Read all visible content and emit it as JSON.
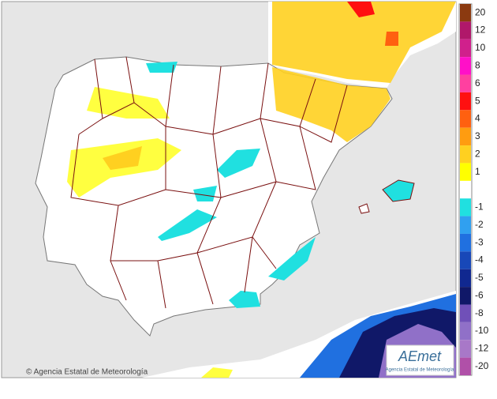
{
  "copyright": "© Agencia Estatal de Meteorología",
  "logo": {
    "name": "AEmet",
    "subtitle": "Agencia Estatal de Meteorología"
  },
  "legend": {
    "positive": [
      {
        "label": 20,
        "color": "#8b3a10"
      },
      {
        "label": 12,
        "color": "#b0186a"
      },
      {
        "label": 10,
        "color": "#d0208c"
      },
      {
        "label": 8,
        "color": "#ff10c8"
      },
      {
        "label": 6,
        "color": "#ff40a0"
      },
      {
        "label": 5,
        "color": "#ff1010"
      },
      {
        "label": 4,
        "color": "#ff6010"
      },
      {
        "label": 3,
        "color": "#ff9c10"
      },
      {
        "label": 2,
        "color": "#ffd020"
      },
      {
        "label": 1,
        "color": "#ffff00"
      }
    ],
    "negative": [
      {
        "label": -1,
        "color": "#20e0e0"
      },
      {
        "label": -2,
        "color": "#30a0f0"
      },
      {
        "label": -3,
        "color": "#2070e0"
      },
      {
        "label": -4,
        "color": "#1848b8"
      },
      {
        "label": -5,
        "color": "#102890"
      },
      {
        "label": -6,
        "color": "#101868"
      },
      {
        "label": -8,
        "color": "#7050b8"
      },
      {
        "label": -10,
        "color": "#9070c8"
      },
      {
        "label": -12,
        "color": "#a878c8"
      },
      {
        "label": -20,
        "color": "#b050a8"
      }
    ]
  }
}
